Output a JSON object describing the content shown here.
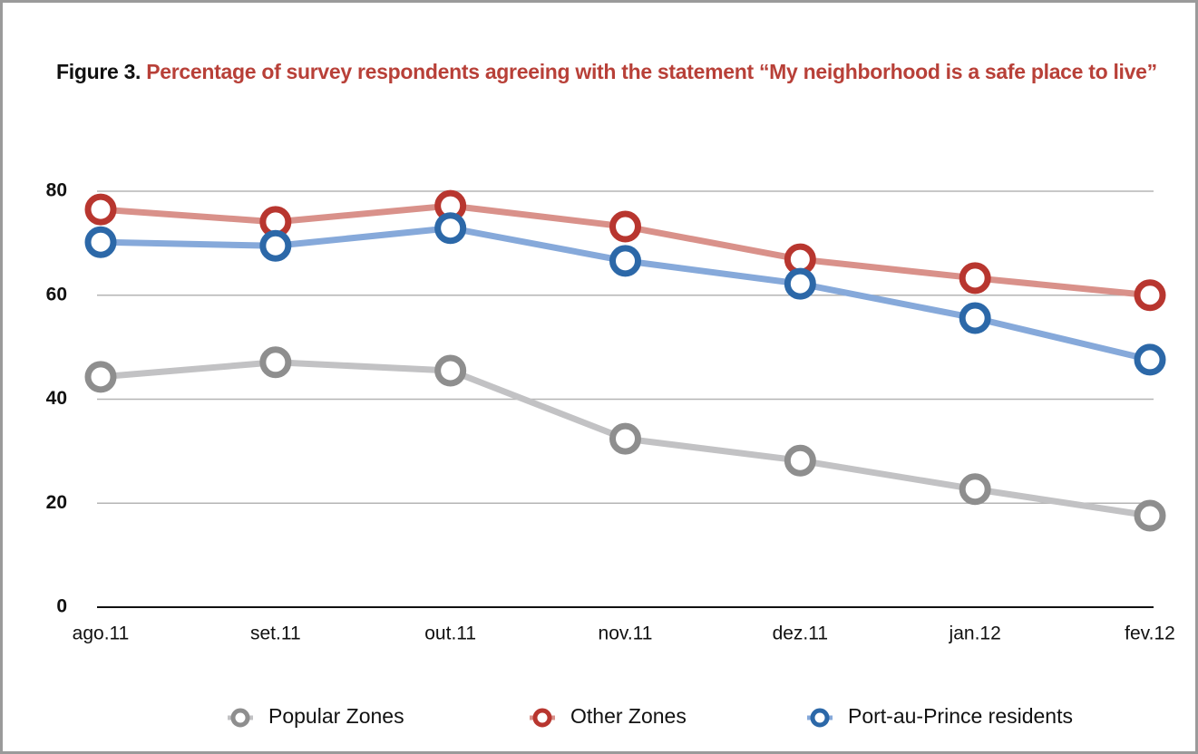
{
  "chart_data": {
    "type": "line",
    "figure_label": "Figure 3.",
    "title": "Percentage of survey respondents agreeing with the statement “My neighborhood is a safe place to live”",
    "categories": [
      "ago.11",
      "set.11",
      "out.11",
      "nov.11",
      "dez.11",
      "jan.12",
      "fev.12"
    ],
    "series": [
      {
        "name": "Popular Zones",
        "color": "#c2c2c4",
        "marker_color": "#8e8e8e",
        "values": [
          44.3,
          47.1,
          45.5,
          32.4,
          28.2,
          22.7,
          17.6
        ]
      },
      {
        "name": "Other Zones",
        "color": "#d9918a",
        "marker_color": "#b8362f",
        "values": [
          76.5,
          74.1,
          77.2,
          73.2,
          66.9,
          63.3,
          60.0
        ]
      },
      {
        "name": "Port-au-Prince residents",
        "color": "#86a9da",
        "marker_color": "#2c68a8",
        "values": [
          70.2,
          69.5,
          72.9,
          66.6,
          62.2,
          55.6,
          47.6
        ]
      }
    ],
    "ylim": [
      0,
      80
    ],
    "yticks": [
      0,
      20,
      40,
      60,
      80
    ],
    "grid": true,
    "legend": "bottom"
  }
}
